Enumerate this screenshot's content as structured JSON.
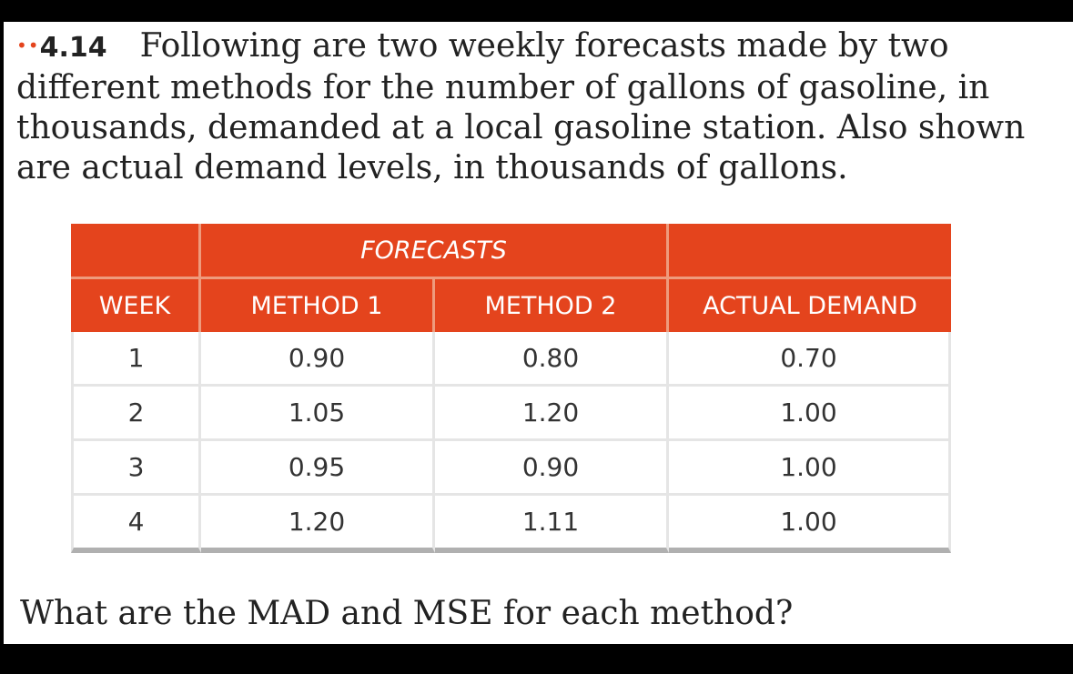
{
  "problem": {
    "dots": "••",
    "number": "4.14",
    "text": "Following are two weekly forecasts made by two different methods for the number of gallons of gasoline, in thousands, demanded at a local gasoline station. Also shown are actual demand levels, in thousands of gallons."
  },
  "table": {
    "group_header": "FORECASTS",
    "columns": [
      "WEEK",
      "METHOD 1",
      "METHOD 2",
      "ACTUAL DEMAND"
    ],
    "rows": [
      {
        "week": "1",
        "method1": "0.90",
        "method2": "0.80",
        "actual": "0.70"
      },
      {
        "week": "2",
        "method1": "1.05",
        "method2": "1.20",
        "actual": "1.00"
      },
      {
        "week": "3",
        "method1": "0.95",
        "method2": "0.90",
        "actual": "1.00"
      },
      {
        "week": "4",
        "method1": "1.20",
        "method2": "1.11",
        "actual": "1.00"
      }
    ]
  },
  "question": "What are the MAD and MSE for each method?",
  "colors": {
    "header_bg": "#e4441d",
    "header_text": "#ffffff",
    "page_bg": "#ffffff",
    "frame_bg": "#000000"
  }
}
